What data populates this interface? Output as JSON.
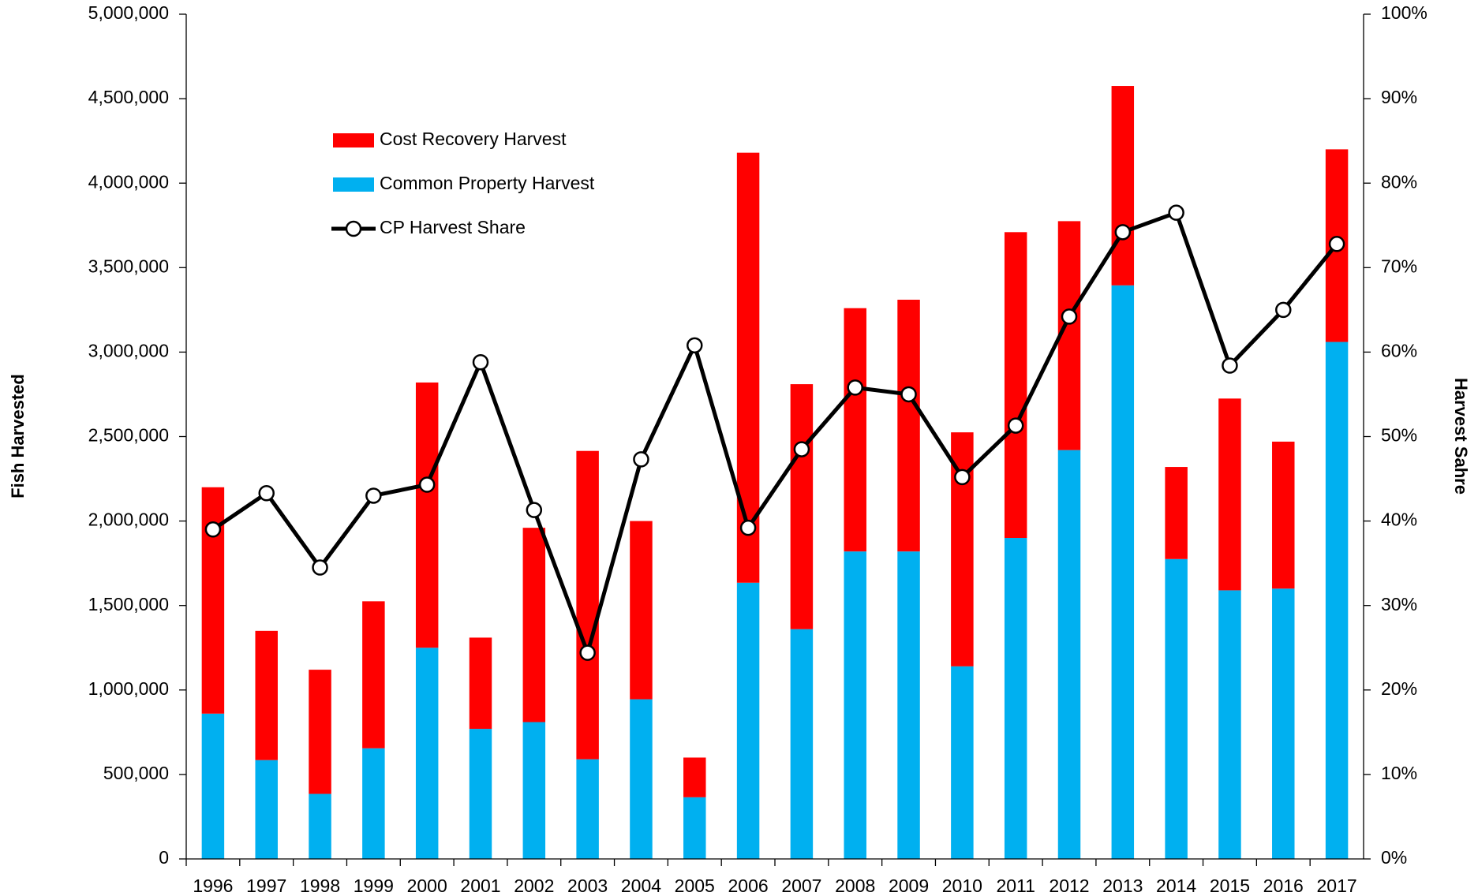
{
  "chart_data": {
    "type": "bar-line",
    "y_label": "Fish Harvested",
    "y2_label": "Harvest Sahre",
    "categories": [
      "1996",
      "1997",
      "1998",
      "1999",
      "2000",
      "2001",
      "2002",
      "2003",
      "2004",
      "2005",
      "2006",
      "2007",
      "2008",
      "2009",
      "2010",
      "2011",
      "2012",
      "2013",
      "2014",
      "2015",
      "2016",
      "2017"
    ],
    "series": [
      {
        "name": "Common Property Harvest",
        "color": "#00b0f0",
        "kind": "bar",
        "values": [
          860000,
          585000,
          385000,
          655000,
          1250000,
          770000,
          810000,
          590000,
          945000,
          365000,
          1635000,
          1360000,
          1820000,
          1820000,
          1140000,
          1900000,
          2420000,
          3395000,
          1775000,
          1590000,
          1600000,
          3060000
        ]
      },
      {
        "name": "Cost Recovery Harvest",
        "color": "#ff0000",
        "kind": "bar",
        "values": [
          1340000,
          765000,
          735000,
          870000,
          1570000,
          540000,
          1150000,
          1825000,
          1055000,
          235000,
          2545000,
          1450000,
          1440000,
          1490000,
          1385000,
          1810000,
          1355000,
          1180000,
          545000,
          1135000,
          870000,
          1140000
        ]
      },
      {
        "name": "CP Harvest Share",
        "color": "#000000",
        "kind": "line",
        "axis": "y2",
        "values": [
          39,
          43.3,
          34.5,
          43,
          44.3,
          58.8,
          41.3,
          24.4,
          47.3,
          60.8,
          39.2,
          48.5,
          55.8,
          55,
          45.2,
          51.3,
          64.2,
          74.2,
          76.5,
          58.4,
          65,
          72.8
        ]
      }
    ],
    "ylim": [
      0,
      5000000
    ],
    "yticks": [
      0,
      {
        "value": 500000,
        "label": "500,000"
      },
      {
        "value": 1000000,
        "label": "1,000,000"
      },
      {
        "value": 1500000,
        "label": "1,500,000"
      },
      {
        "value": 2000000,
        "label": "2,000,000"
      },
      {
        "value": 2500000,
        "label": "2,500,000"
      },
      {
        "value": 3000000,
        "label": "3,000,000"
      },
      {
        "value": 3500000,
        "label": "3,500,000"
      },
      {
        "value": 4000000,
        "label": "4,000,000"
      },
      {
        "value": 4500000,
        "label": "4,500,000"
      },
      {
        "value": 5000000,
        "label": "5,000,000"
      }
    ],
    "y2lim": [
      0,
      100
    ],
    "y2ticks": [
      {
        "value": 0,
        "label": "0%"
      },
      {
        "value": 10,
        "label": "10%"
      },
      {
        "value": 20,
        "label": "20%"
      },
      {
        "value": 30,
        "label": "30%"
      },
      {
        "value": 40,
        "label": "40%"
      },
      {
        "value": 50,
        "label": "50%"
      },
      {
        "value": 60,
        "label": "60%"
      },
      {
        "value": 70,
        "label": "70%"
      },
      {
        "value": 80,
        "label": "80%"
      },
      {
        "value": 90,
        "label": "90%"
      },
      {
        "value": 100,
        "label": "100%"
      }
    ],
    "legend_order": [
      1,
      0,
      2
    ]
  }
}
